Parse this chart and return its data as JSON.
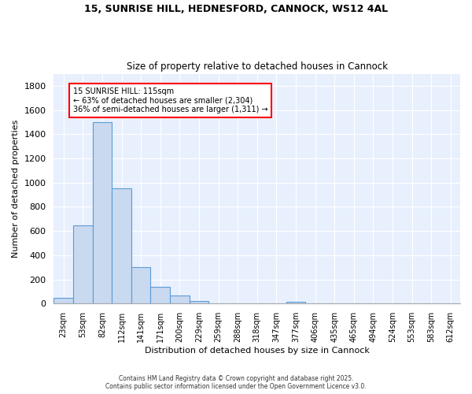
{
  "title_line1": "15, SUNRISE HILL, HEDNESFORD, CANNOCK, WS12 4AL",
  "title_line2": "Size of property relative to detached houses in Cannock",
  "xlabel": "Distribution of detached houses by size in Cannock",
  "ylabel": "Number of detached properties",
  "bar_color": "#c9d9f0",
  "bar_edge_color": "#5b9bd5",
  "categories": [
    "23sqm",
    "53sqm",
    "82sqm",
    "112sqm",
    "141sqm",
    "171sqm",
    "200sqm",
    "229sqm",
    "259sqm",
    "288sqm",
    "318sqm",
    "347sqm",
    "377sqm",
    "406sqm",
    "435sqm",
    "465sqm",
    "494sqm",
    "524sqm",
    "553sqm",
    "583sqm",
    "612sqm"
  ],
  "values": [
    50,
    650,
    1500,
    950,
    300,
    140,
    65,
    22,
    5,
    0,
    0,
    0,
    15,
    0,
    0,
    0,
    0,
    0,
    0,
    0,
    0
  ],
  "ylim": [
    0,
    1900
  ],
  "yticks": [
    0,
    200,
    400,
    600,
    800,
    1000,
    1200,
    1400,
    1600,
    1800
  ],
  "annotation_text_line1": "15 SUNRISE HILL: 115sqm",
  "annotation_text_line2": "← 63% of detached houses are smaller (2,304)",
  "annotation_text_line3": "36% of semi-detached houses are larger (1,311) →",
  "background_color": "#e8f0fe",
  "grid_color": "#ffffff",
  "footer_line1": "Contains HM Land Registry data © Crown copyright and database right 2025.",
  "footer_line2": "Contains public sector information licensed under the Open Government Licence v3.0."
}
